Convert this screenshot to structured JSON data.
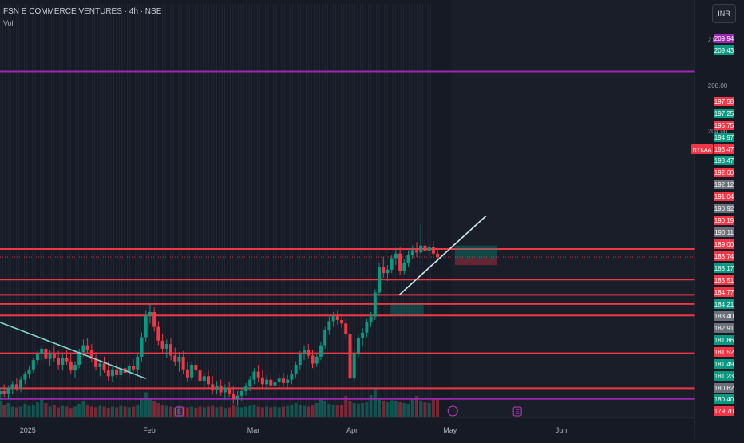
{
  "header": {
    "symbol_title": "FSN E COMMERCE VENTURES · 4h · NSE",
    "volume_label": "Vol"
  },
  "currency_button": "INR",
  "chart_data": {
    "type": "candlestick",
    "title": "FSN E COMMERCE VENTURES · 4h · NSE",
    "ylim": [
      179.0,
      213.0
    ],
    "x_ticks": [
      {
        "label": "2025",
        "pos": 0.04
      },
      {
        "label": "Feb",
        "pos": 0.215
      },
      {
        "label": "Mar",
        "pos": 0.365
      },
      {
        "label": "Apr",
        "pos": 0.507
      },
      {
        "label": "May",
        "pos": 0.648
      },
      {
        "label": "Jun",
        "pos": 0.808
      }
    ],
    "price_ticks": [
      "212.00",
      "208.00",
      "204.00"
    ],
    "horizontal_levels": [
      {
        "price": 209.2,
        "color": "#9c27b0"
      },
      {
        "price": 193.7,
        "color": "#f23645"
      },
      {
        "price": 191.04,
        "color": "#f23645"
      },
      {
        "price": 189.7,
        "color": "#f23645"
      },
      {
        "price": 188.9,
        "color": "#f23645"
      },
      {
        "price": 187.9,
        "color": "#f23645"
      },
      {
        "price": 184.6,
        "color": "#f23645"
      },
      {
        "price": 181.55,
        "color": "#f23645"
      },
      {
        "price": 180.62,
        "color": "#9c27b0"
      }
    ],
    "trendlines": [
      {
        "from": [
          0.0,
          187.3
        ],
        "to": [
          0.21,
          182.4
        ],
        "color": "#7fd6d0"
      },
      {
        "from": [
          0.575,
          189.7
        ],
        "to": [
          0.7,
          196.6
        ],
        "color": "#cfe9ec"
      }
    ],
    "price_badges": [
      {
        "text": "209.94",
        "color": "#9c27b0"
      },
      {
        "text": "209.43",
        "color": "#089981"
      },
      {
        "text": "197.58",
        "color": "#f23645"
      },
      {
        "text": "197.25",
        "color": "#089981"
      },
      {
        "text": "195.75",
        "color": "#f23645"
      },
      {
        "text": "194.97",
        "color": "#089981"
      },
      {
        "text": "193.47",
        "color": "#f23645",
        "tag": "NYKAA"
      },
      {
        "text": "193.47",
        "color": "#089981"
      },
      {
        "text": "192.60",
        "color": "#f23645"
      },
      {
        "text": "192.12",
        "color": "#6b6f78"
      },
      {
        "text": "191.04",
        "color": "#f23645"
      },
      {
        "text": "190.92",
        "color": "#6b6f78"
      },
      {
        "text": "190.19",
        "color": "#f23645"
      },
      {
        "text": "190.11",
        "color": "#6b6f78"
      },
      {
        "text": "189.00",
        "color": "#f23645"
      },
      {
        "text": "188.74",
        "color": "#f23645"
      },
      {
        "text": "188.17",
        "color": "#089981"
      },
      {
        "text": "185.51",
        "color": "#f23645"
      },
      {
        "text": "184.77",
        "color": "#f23645"
      },
      {
        "text": "184.21",
        "color": "#089981"
      },
      {
        "text": "183.40",
        "color": "#6b6f78"
      },
      {
        "text": "182.91",
        "color": "#6b6f78"
      },
      {
        "text": "181.86",
        "color": "#089981"
      },
      {
        "text": "181.52",
        "color": "#f23645"
      },
      {
        "text": "181.49",
        "color": "#089981"
      },
      {
        "text": "181.23",
        "color": "#089981"
      },
      {
        "text": "180.62",
        "color": "#6b6f78"
      },
      {
        "text": "180.40",
        "color": "#089981"
      },
      {
        "text": "179.70",
        "color": "#f23645"
      }
    ],
    "candles": [
      [
        0.0,
        181.0,
        181.6,
        180.5,
        181.3
      ],
      [
        0.006,
        181.3,
        181.9,
        180.8,
        181.1
      ],
      [
        0.012,
        181.1,
        181.8,
        180.6,
        181.6
      ],
      [
        0.018,
        181.6,
        182.2,
        181.0,
        181.9
      ],
      [
        0.024,
        181.9,
        182.4,
        181.3,
        181.5
      ],
      [
        0.03,
        181.5,
        182.6,
        181.2,
        182.3
      ],
      [
        0.036,
        182.3,
        183.0,
        181.9,
        182.8
      ],
      [
        0.042,
        182.8,
        183.5,
        182.4,
        183.2
      ],
      [
        0.048,
        183.2,
        184.2,
        182.9,
        184.0
      ],
      [
        0.054,
        184.0,
        184.8,
        183.6,
        184.5
      ],
      [
        0.06,
        184.5,
        185.2,
        184.0,
        185.0
      ],
      [
        0.066,
        185.0,
        185.6,
        183.8,
        184.1
      ],
      [
        0.072,
        184.1,
        184.9,
        183.5,
        184.6
      ],
      [
        0.078,
        184.6,
        185.3,
        183.9,
        184.2
      ],
      [
        0.084,
        184.2,
        184.8,
        183.2,
        183.6
      ],
      [
        0.09,
        183.6,
        184.5,
        183.1,
        184.2
      ],
      [
        0.096,
        184.2,
        184.9,
        183.6,
        183.9
      ],
      [
        0.102,
        183.9,
        184.6,
        182.8,
        183.1
      ],
      [
        0.108,
        183.1,
        183.9,
        182.5,
        183.6
      ],
      [
        0.114,
        183.6,
        185.0,
        183.3,
        184.7
      ],
      [
        0.12,
        184.7,
        185.8,
        184.3,
        185.3
      ],
      [
        0.126,
        185.3,
        185.9,
        184.6,
        184.9
      ],
      [
        0.132,
        184.9,
        185.4,
        183.8,
        184.1
      ],
      [
        0.138,
        184.1,
        184.7,
        183.1,
        183.4
      ],
      [
        0.144,
        183.4,
        184.0,
        182.6,
        183.7
      ],
      [
        0.15,
        183.7,
        184.3,
        182.9,
        183.1
      ],
      [
        0.156,
        183.1,
        183.8,
        182.2,
        182.6
      ],
      [
        0.162,
        182.6,
        183.5,
        182.1,
        183.2
      ],
      [
        0.168,
        183.2,
        183.9,
        182.4,
        182.7
      ],
      [
        0.174,
        182.7,
        183.6,
        182.3,
        183.3
      ],
      [
        0.18,
        183.3,
        183.9,
        182.6,
        182.9
      ],
      [
        0.186,
        182.9,
        183.7,
        182.5,
        183.5
      ],
      [
        0.192,
        183.5,
        184.1,
        182.9,
        183.2
      ],
      [
        0.198,
        183.2,
        184.6,
        182.8,
        184.3
      ],
      [
        0.204,
        184.3,
        186.4,
        183.9,
        186.0
      ],
      [
        0.21,
        186.0,
        188.3,
        185.6,
        187.9
      ],
      [
        0.216,
        187.9,
        188.9,
        187.2,
        188.2
      ],
      [
        0.222,
        188.2,
        188.6,
        186.5,
        186.9
      ],
      [
        0.228,
        186.9,
        187.4,
        185.3,
        185.7
      ],
      [
        0.234,
        185.7,
        186.3,
        184.6,
        185.0
      ],
      [
        0.24,
        185.0,
        185.8,
        184.2,
        185.4
      ],
      [
        0.246,
        185.4,
        185.9,
        184.0,
        184.4
      ],
      [
        0.252,
        184.4,
        185.1,
        183.5,
        183.9
      ],
      [
        0.258,
        183.9,
        184.7,
        183.0,
        184.3
      ],
      [
        0.264,
        184.3,
        184.8,
        182.8,
        183.2
      ],
      [
        0.27,
        183.2,
        183.8,
        182.1,
        182.5
      ],
      [
        0.276,
        182.5,
        183.9,
        182.2,
        183.6
      ],
      [
        0.282,
        183.6,
        184.2,
        182.7,
        183.1
      ],
      [
        0.288,
        183.1,
        183.5,
        181.9,
        182.2
      ],
      [
        0.294,
        182.2,
        182.9,
        181.6,
        182.6
      ],
      [
        0.3,
        182.6,
        183.1,
        181.5,
        181.9
      ],
      [
        0.306,
        181.9,
        182.6,
        181.0,
        181.4
      ],
      [
        0.312,
        181.4,
        182.2,
        181.0,
        181.8
      ],
      [
        0.318,
        181.8,
        182.3,
        180.9,
        181.2
      ],
      [
        0.324,
        181.2,
        181.9,
        180.6,
        181.6
      ],
      [
        0.33,
        181.6,
        182.1,
        180.8,
        181.1
      ],
      [
        0.336,
        181.1,
        181.7,
        180.2,
        180.6
      ],
      [
        0.342,
        180.6,
        181.3,
        180.0,
        180.9
      ],
      [
        0.348,
        180.9,
        181.6,
        180.4,
        181.3
      ],
      [
        0.354,
        181.3,
        182.0,
        180.9,
        181.7
      ],
      [
        0.36,
        181.7,
        182.6,
        181.3,
        182.3
      ],
      [
        0.366,
        182.3,
        183.3,
        181.9,
        183.0
      ],
      [
        0.372,
        183.0,
        183.6,
        182.1,
        182.5
      ],
      [
        0.378,
        182.5,
        183.2,
        181.6,
        181.9
      ],
      [
        0.384,
        181.9,
        182.7,
        181.4,
        182.3
      ],
      [
        0.39,
        182.3,
        182.9,
        181.5,
        181.8
      ],
      [
        0.396,
        181.8,
        182.5,
        181.2,
        182.1
      ],
      [
        0.402,
        182.1,
        182.8,
        181.6,
        182.4
      ],
      [
        0.408,
        182.4,
        182.9,
        181.7,
        182.0
      ],
      [
        0.414,
        182.0,
        182.7,
        181.4,
        182.3
      ],
      [
        0.42,
        182.3,
        183.1,
        181.9,
        182.8
      ],
      [
        0.426,
        182.8,
        183.9,
        182.5,
        183.6
      ],
      [
        0.432,
        183.6,
        184.8,
        183.2,
        184.5
      ],
      [
        0.438,
        184.5,
        185.3,
        184.0,
        184.9
      ],
      [
        0.444,
        184.9,
        185.4,
        184.1,
        184.4
      ],
      [
        0.45,
        184.4,
        184.9,
        183.3,
        183.7
      ],
      [
        0.456,
        183.7,
        184.6,
        183.4,
        184.3
      ],
      [
        0.462,
        184.3,
        185.6,
        184.0,
        185.3
      ],
      [
        0.468,
        185.3,
        186.9,
        185.0,
        186.6
      ],
      [
        0.474,
        186.6,
        187.8,
        186.2,
        187.4
      ],
      [
        0.48,
        187.4,
        188.2,
        186.9,
        187.9
      ],
      [
        0.486,
        187.9,
        188.3,
        187.1,
        187.5
      ],
      [
        0.492,
        187.5,
        188.0,
        186.8,
        187.2
      ],
      [
        0.498,
        187.2,
        187.6,
        185.9,
        186.3
      ],
      [
        0.504,
        186.3,
        186.8,
        181.9,
        182.4
      ],
      [
        0.51,
        182.4,
        184.9,
        182.1,
        184.6
      ],
      [
        0.516,
        184.6,
        186.2,
        184.2,
        185.9
      ],
      [
        0.522,
        185.9,
        186.8,
        185.2,
        186.4
      ],
      [
        0.528,
        186.4,
        187.6,
        186.0,
        187.3
      ],
      [
        0.534,
        187.3,
        188.2,
        186.9,
        187.8
      ],
      [
        0.54,
        187.8,
        190.2,
        187.5,
        189.9
      ],
      [
        0.546,
        189.9,
        192.5,
        189.6,
        192.1
      ],
      [
        0.552,
        192.1,
        193.0,
        191.2,
        191.6
      ],
      [
        0.558,
        191.6,
        192.3,
        190.9,
        191.9
      ],
      [
        0.564,
        191.9,
        193.2,
        191.6,
        192.9
      ],
      [
        0.57,
        192.9,
        193.8,
        192.3,
        193.3
      ],
      [
        0.576,
        193.3,
        193.9,
        191.4,
        191.8
      ],
      [
        0.582,
        191.8,
        192.8,
        191.5,
        192.5
      ],
      [
        0.588,
        192.5,
        193.6,
        192.1,
        193.2
      ],
      [
        0.594,
        193.2,
        194.0,
        192.8,
        193.6
      ],
      [
        0.6,
        193.6,
        194.3,
        193.0,
        193.4
      ],
      [
        0.606,
        193.4,
        195.9,
        193.1,
        194.0
      ],
      [
        0.612,
        194.0,
        194.6,
        193.1,
        193.5
      ],
      [
        0.618,
        193.5,
        194.2,
        192.9,
        193.9
      ],
      [
        0.624,
        193.9,
        194.4,
        193.1,
        193.3
      ],
      [
        0.63,
        193.3,
        193.8,
        192.6,
        193.0
      ]
    ],
    "volume": [
      0.45,
      0.35,
      0.4,
      0.3,
      0.28,
      0.3,
      0.38,
      0.32,
      0.35,
      0.42,
      0.5,
      0.4,
      0.3,
      0.35,
      0.28,
      0.32,
      0.3,
      0.26,
      0.3,
      0.38,
      0.45,
      0.36,
      0.3,
      0.28,
      0.32,
      0.3,
      0.27,
      0.3,
      0.28,
      0.32,
      0.3,
      0.28,
      0.3,
      0.35,
      0.55,
      0.7,
      0.55,
      0.45,
      0.4,
      0.35,
      0.32,
      0.3,
      0.28,
      0.32,
      0.3,
      0.28,
      0.3,
      0.27,
      0.3,
      0.28,
      0.3,
      0.32,
      0.28,
      0.3,
      0.26,
      0.28,
      0.35,
      0.3,
      0.28,
      0.3,
      0.32,
      0.36,
      0.3,
      0.28,
      0.3,
      0.28,
      0.3,
      0.28,
      0.3,
      0.32,
      0.35,
      0.4,
      0.36,
      0.32,
      0.3,
      0.34,
      0.4,
      0.5,
      0.45,
      0.38,
      0.35,
      0.33,
      0.35,
      0.6,
      0.45,
      0.4,
      0.38,
      0.4,
      0.42,
      0.62,
      0.8,
      0.55,
      0.45,
      0.42,
      0.48,
      0.45,
      0.42,
      0.4,
      0.38,
      0.5,
      0.6,
      0.45,
      0.42,
      0.4,
      0.55,
      0.5
    ]
  }
}
